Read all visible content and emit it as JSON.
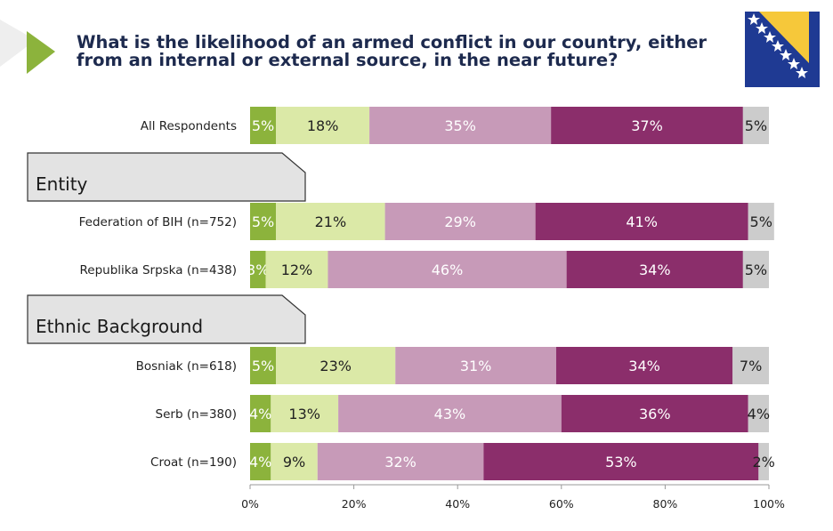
{
  "title": "What is the likelihood of an armed conflict in our country, either from an internal or external source, in the near future?",
  "colors": {
    "accent_green": "#8cb33c",
    "light_green": "#dbe9a7",
    "light_pink": "#c79ab8",
    "dark_purple": "#8b2e6b",
    "gray": "#cccccc",
    "title": "#1d2a4e",
    "flag_blue": "#1f3a93",
    "flag_yellow": "#f6c83a"
  },
  "chart_data": {
    "type": "bar",
    "orientation": "horizontal",
    "stacked": true,
    "title": "What is the likelihood of an armed conflict in our country, either from an internal or external source, in the near future?",
    "xlim": [
      0,
      100
    ],
    "x_ticks": [
      "0%",
      "20%",
      "40%",
      "60%",
      "80%",
      "100%"
    ],
    "grid": false,
    "legend": "none",
    "sections": [
      {
        "label": "",
        "rows": [
          0
        ]
      },
      {
        "label": "Entity",
        "rows": [
          1,
          2
        ]
      },
      {
        "label": "Ethnic Background",
        "rows": [
          3,
          4,
          5
        ]
      }
    ],
    "rows": [
      {
        "label": "All Respondents",
        "values": [
          5,
          18,
          35,
          37,
          5
        ]
      },
      {
        "label": "Federation of BIH (n=752)",
        "values": [
          5,
          21,
          29,
          41,
          5
        ]
      },
      {
        "label": "Republika Srpska (n=438)",
        "values": [
          3,
          12,
          46,
          34,
          5
        ]
      },
      {
        "label": "Bosniak (n=618)",
        "values": [
          5,
          23,
          31,
          34,
          7
        ]
      },
      {
        "label": "Serb (n=380)",
        "values": [
          4,
          13,
          43,
          36,
          4
        ]
      },
      {
        "label": "Croat (n=190)",
        "values": [
          4,
          9,
          32,
          53,
          2
        ]
      }
    ],
    "segment_colors": [
      "#8cb33c",
      "#dbe9a7",
      "#c79ab8",
      "#8b2e6b",
      "#cccccc"
    ],
    "segment_text_colors": [
      "#ffffff",
      "#222222",
      "#ffffff",
      "#ffffff",
      "#222222"
    ]
  }
}
